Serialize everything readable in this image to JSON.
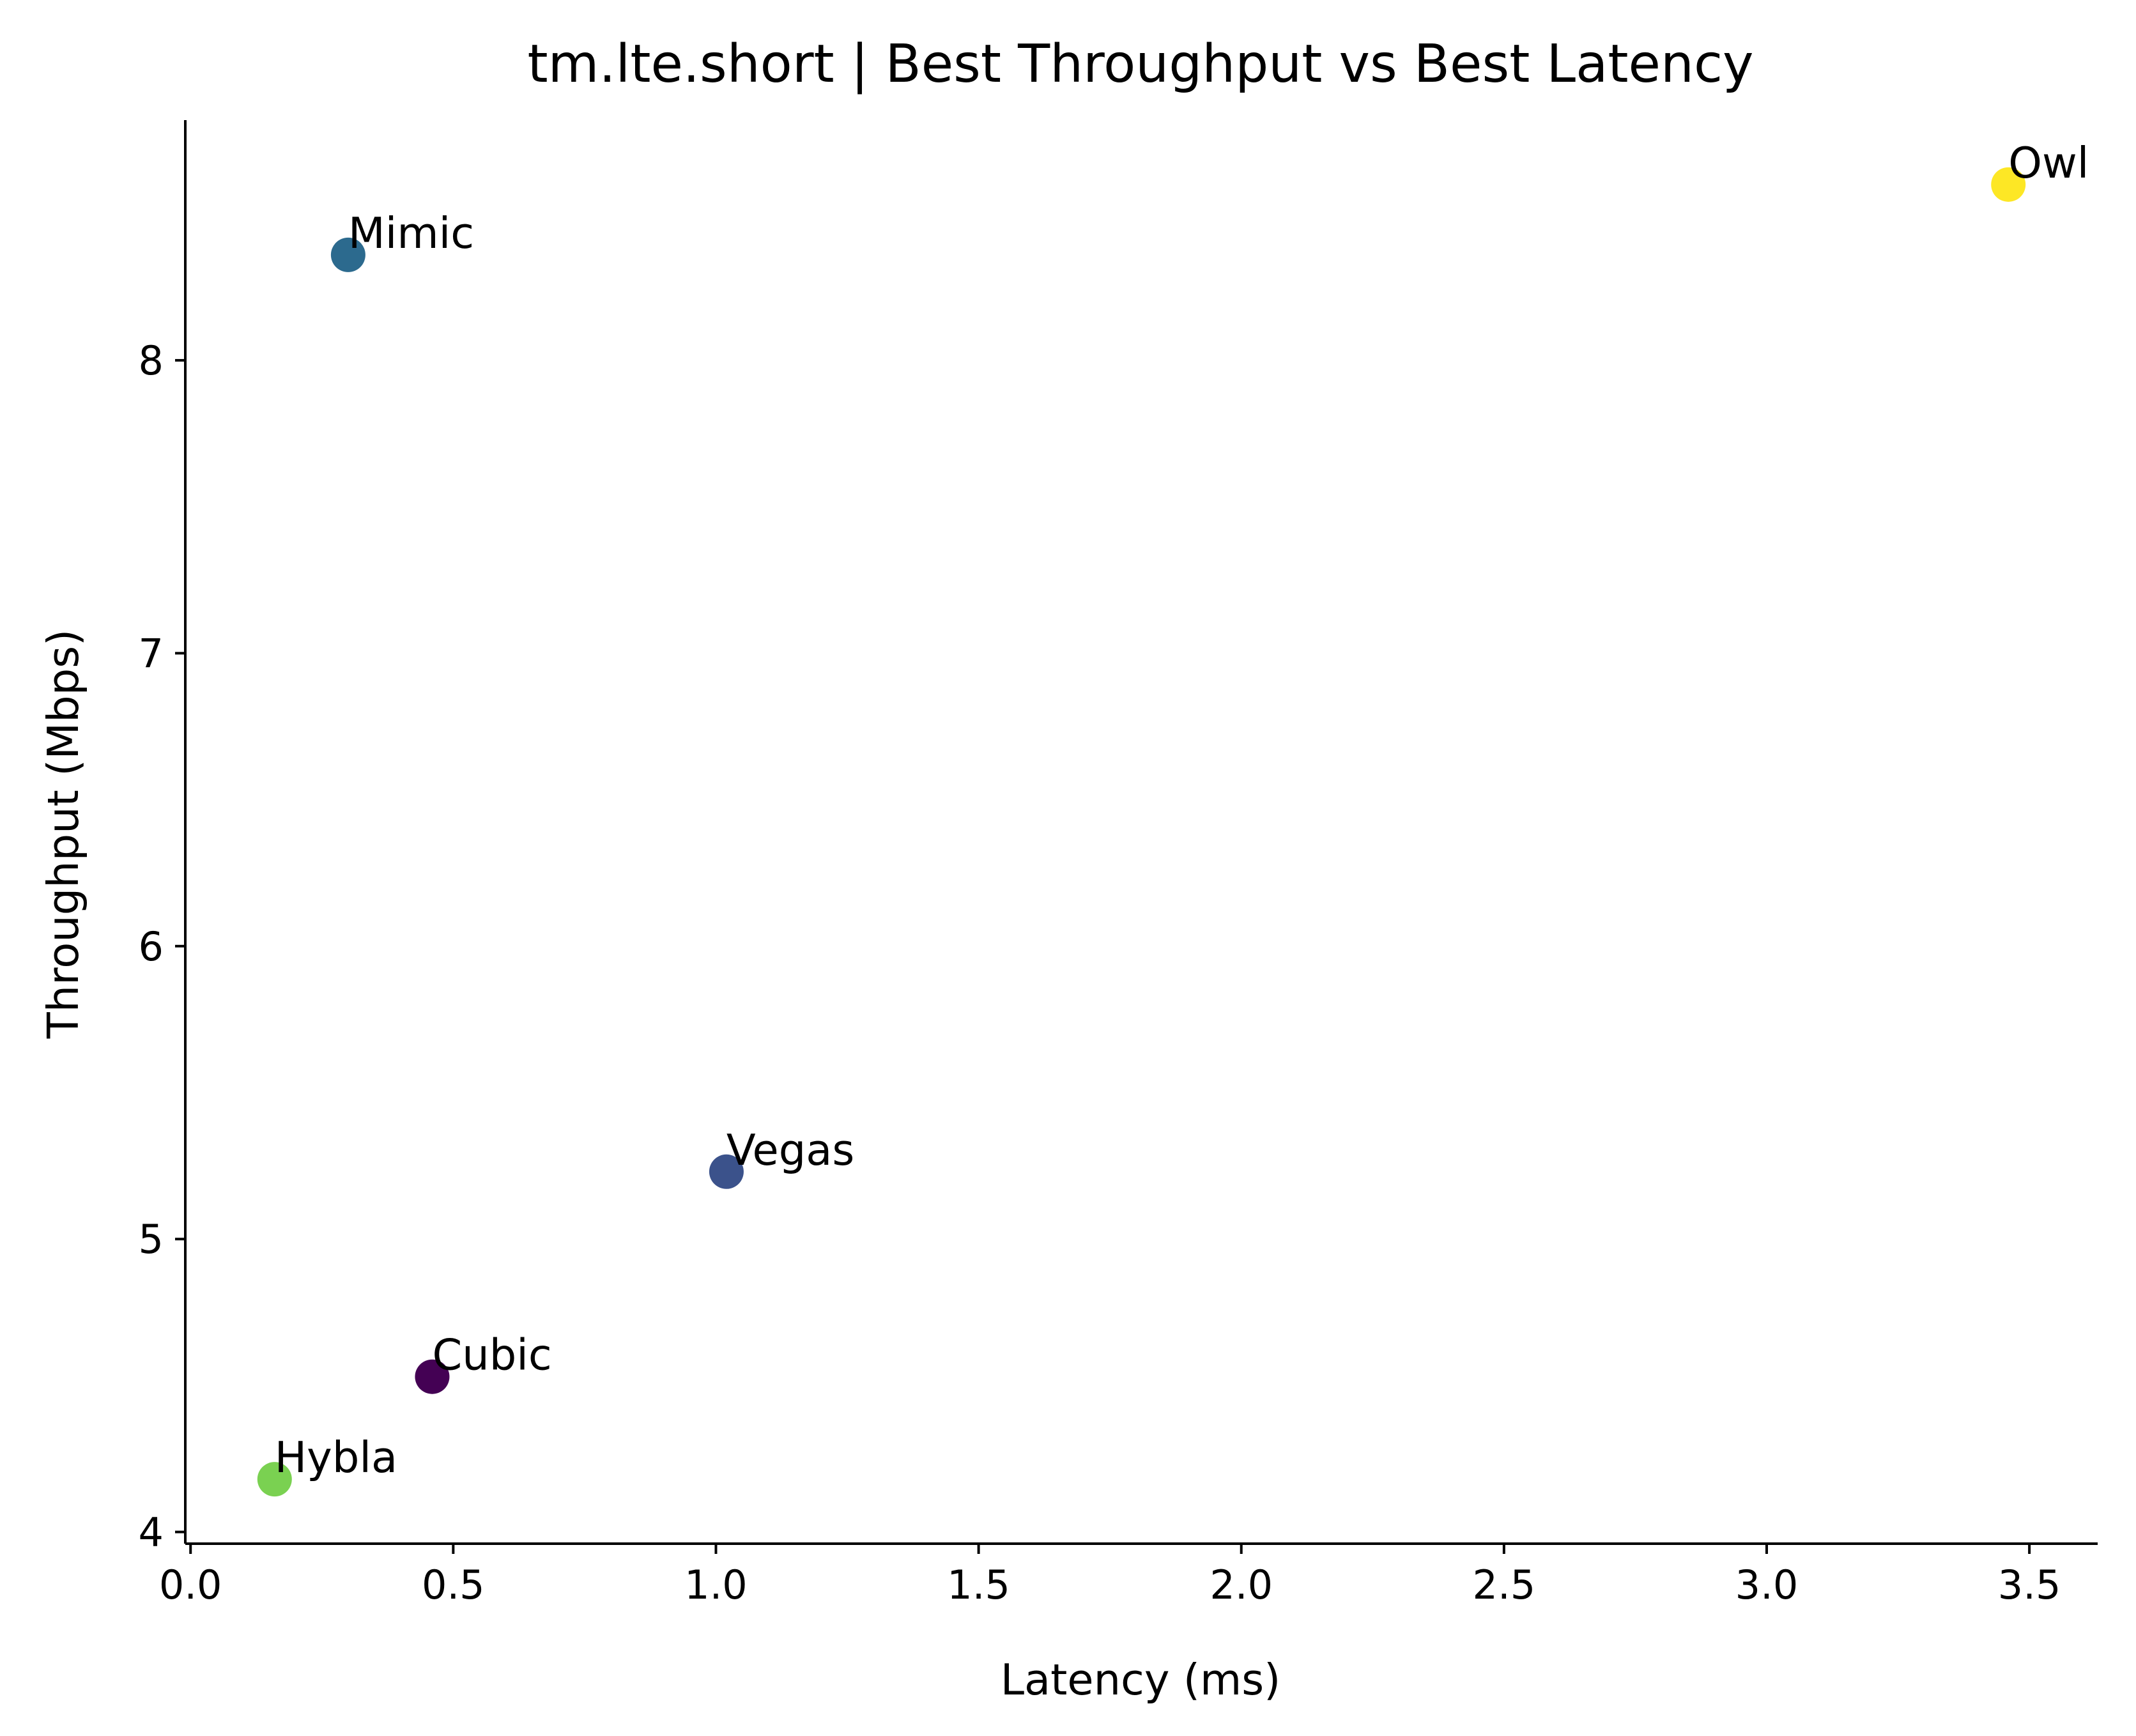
{
  "chart_data": {
    "type": "scatter",
    "title": "tm.lte.short | Best Throughput vs Best Latency",
    "xlabel": "Latency (ms)",
    "ylabel": "Throughput (Mbps)",
    "xlim": [
      -0.01,
      3.63
    ],
    "ylim": [
      3.96,
      8.82
    ],
    "x_ticks": [
      0.0,
      0.5,
      1.0,
      1.5,
      2.0,
      2.5,
      3.0,
      3.5
    ],
    "x_tick_labels": [
      "0.0",
      "0.5",
      "1.0",
      "1.5",
      "2.0",
      "2.5",
      "3.0",
      "3.5"
    ],
    "y_ticks": [
      4,
      5,
      6,
      7,
      8
    ],
    "y_tick_labels": [
      "4",
      "5",
      "6",
      "7",
      "8"
    ],
    "grid": false,
    "colormap": "viridis",
    "points": [
      {
        "label": "Cubic",
        "x": 0.46,
        "y": 4.53,
        "color": "#440154"
      },
      {
        "label": "Vegas",
        "x": 1.02,
        "y": 5.23,
        "color": "#3b528b"
      },
      {
        "label": "Mimic",
        "x": 0.3,
        "y": 8.36,
        "color": "#2c6a8e"
      },
      {
        "label": "Hybla",
        "x": 0.16,
        "y": 4.18,
        "color": "#7ad151"
      },
      {
        "label": "Owl",
        "x": 3.46,
        "y": 8.6,
        "color": "#fde725"
      }
    ]
  }
}
